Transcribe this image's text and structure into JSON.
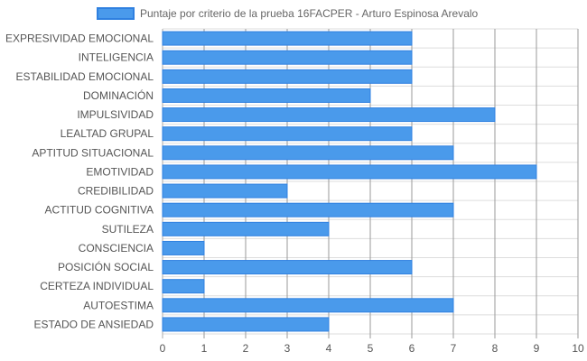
{
  "chart_data": {
    "type": "bar",
    "orientation": "horizontal",
    "categories": [
      "EXPRESIVIDAD EMOCIONAL",
      "INTELIGENCIA",
      "ESTABILIDAD EMOCIONAL",
      "DOMINACIÓN",
      "IMPULSIVIDAD",
      "LEALTAD GRUPAL",
      "APTITUD SITUACIONAL",
      "EMOTIVIDAD",
      "CREDIBILIDAD",
      "ACTITUD COGNITIVA",
      "SUTILEZA",
      "CONSCIENCIA",
      "POSICIÓN SOCIAL",
      "CERTEZA INDIVIDUAL",
      "AUTOESTIMA",
      "ESTADO DE ANSIEDAD"
    ],
    "series": [
      {
        "name": "Puntaje por criterio de la prueba 16FACPER - Arturo Espinosa Arevalo",
        "values": [
          6,
          6,
          6,
          5,
          8,
          6,
          7,
          9,
          3,
          7,
          4,
          1,
          6,
          1,
          7,
          4
        ]
      }
    ],
    "xlim": [
      0,
      10
    ],
    "xticks": [
      "0",
      "1",
      "2",
      "3",
      "4",
      "5",
      "6",
      "7",
      "8",
      "9",
      "10"
    ],
    "grid": true,
    "legend_position": "top-center",
    "colors": {
      "bar_fill": "#4a9aeb",
      "bar_stroke": "#2f80e0",
      "grid": "#dddddd",
      "axis_grid": "#999999"
    }
  }
}
